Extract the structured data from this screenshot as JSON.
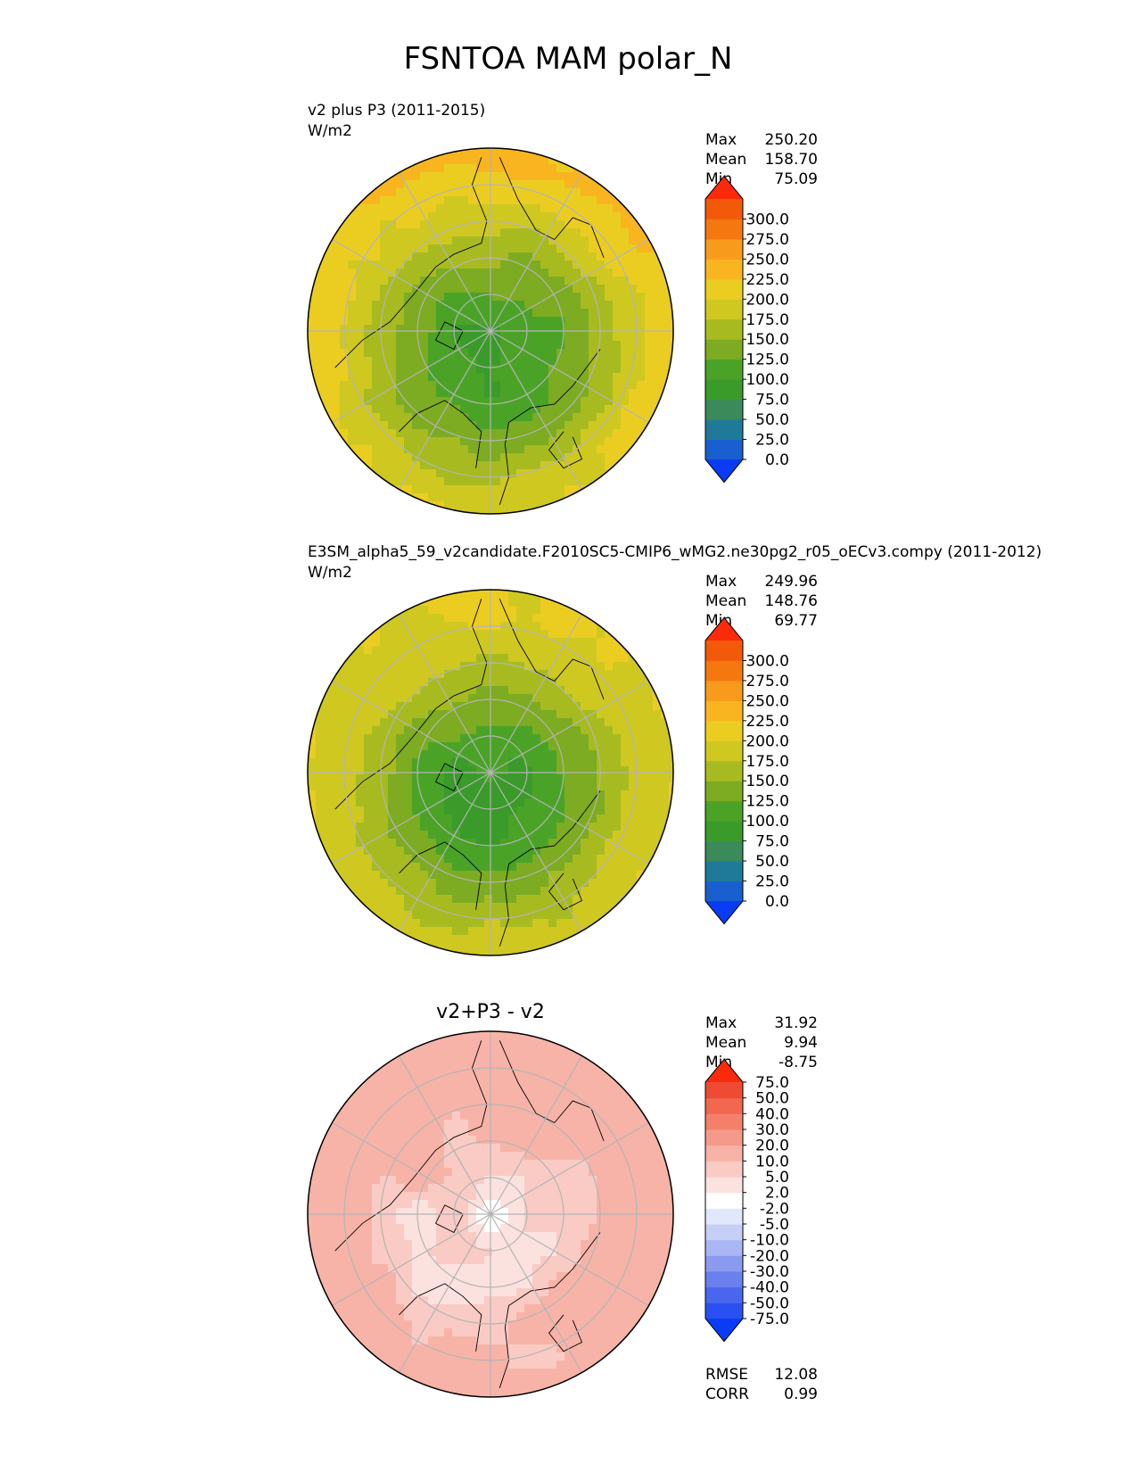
{
  "figure": {
    "title": "FSNTOA MAM polar_N"
  },
  "chart_data": [
    {
      "type": "heatmap",
      "projection": "north-polar-stereographic",
      "title_left": "v2 plus P3 (2011-2015)",
      "units": "W/m2",
      "title_center": "",
      "stats": [
        {
          "label": "Max",
          "value": "250.20"
        },
        {
          "label": "Mean",
          "value": "158.70"
        },
        {
          "label": "Min",
          "value": "75.09"
        }
      ],
      "colorbar": {
        "levels": [
          "0.0",
          "25.0",
          "50.0",
          "75.0",
          "100.0",
          "125.0",
          "150.0",
          "175.0",
          "200.0",
          "225.0",
          "250.0",
          "275.0",
          "300.0"
        ],
        "colors": [
          "#0a3cf5",
          "#1a5fd0",
          "#1f7a9a",
          "#3a8a5a",
          "#3a9a2a",
          "#4aa327",
          "#7dab22",
          "#a7bb20",
          "#cfc821",
          "#ebcd22",
          "#f9b51f",
          "#f89a1b",
          "#f5780f",
          "#f25a0a",
          "#fb2a0b"
        ],
        "extend": "both"
      },
      "field": {
        "pole_value": 105,
        "arctic_basin": 110,
        "ice_edge": 150,
        "mid_lat": 195,
        "southern_rim": 225,
        "variance": 12
      },
      "footer_stats": []
    },
    {
      "type": "heatmap",
      "projection": "north-polar-stereographic",
      "title_left": "E3SM_alpha5_59_v2candidate.F2010SC5-CMIP6_wMG2.ne30pg2_r05_oECv3.compy (2011-2012)",
      "units": "W/m2",
      "title_center": "",
      "stats": [
        {
          "label": "Max",
          "value": "249.96"
        },
        {
          "label": "Mean",
          "value": "148.76"
        },
        {
          "label": "Min",
          "value": "69.77"
        }
      ],
      "colorbar": {
        "levels": [
          "0.0",
          "25.0",
          "50.0",
          "75.0",
          "100.0",
          "125.0",
          "150.0",
          "175.0",
          "200.0",
          "225.0",
          "250.0",
          "275.0",
          "300.0"
        ],
        "colors": [
          "#0a3cf5",
          "#1a5fd0",
          "#1f7a9a",
          "#3a8a5a",
          "#3a9a2a",
          "#4aa327",
          "#7dab22",
          "#a7bb20",
          "#cfc821",
          "#ebcd22",
          "#f9b51f",
          "#f89a1b",
          "#f5780f",
          "#f25a0a",
          "#fb2a0b"
        ],
        "extend": "both"
      },
      "field": {
        "pole_value": 85,
        "arctic_basin": 105,
        "ice_edge": 145,
        "mid_lat": 185,
        "southern_rim": 200,
        "variance": 10
      },
      "footer_stats": []
    },
    {
      "type": "heatmap",
      "projection": "north-polar-stereographic",
      "title_left": "",
      "units": "",
      "title_center": "v2+P3 - v2",
      "stats": [
        {
          "label": "Max",
          "value": "31.92"
        },
        {
          "label": "Mean",
          "value": "9.94"
        },
        {
          "label": "Min",
          "value": "-8.75"
        }
      ],
      "colorbar": {
        "levels": [
          "-75.0",
          "-50.0",
          "-40.0",
          "-30.0",
          "-20.0",
          "-10.0",
          "-5.0",
          "-2.0",
          "2.0",
          "5.0",
          "10.0",
          "20.0",
          "30.0",
          "40.0",
          "50.0",
          "75.0"
        ],
        "colors": [
          "#0a3cf5",
          "#2a50f2",
          "#4a66ef",
          "#6a80ee",
          "#8a9af0",
          "#a9b6f3",
          "#c6d0f6",
          "#e2e8fb",
          "#ffffff",
          "#fbe2df",
          "#f9cbc4",
          "#f7b3a8",
          "#f59a8a",
          "#f4806c",
          "#f2674f",
          "#ef4b34",
          "#fb2a0b"
        ],
        "extend": "both"
      },
      "field": {
        "pole_value": 4,
        "arctic_basin": 5,
        "ice_edge": 10,
        "mid_lat": 14,
        "southern_rim": 15,
        "variance": 5
      },
      "footer_stats": [
        {
          "label": "RMSE",
          "value": "12.08"
        },
        {
          "label": "CORR",
          "value": "0.99"
        }
      ]
    }
  ]
}
